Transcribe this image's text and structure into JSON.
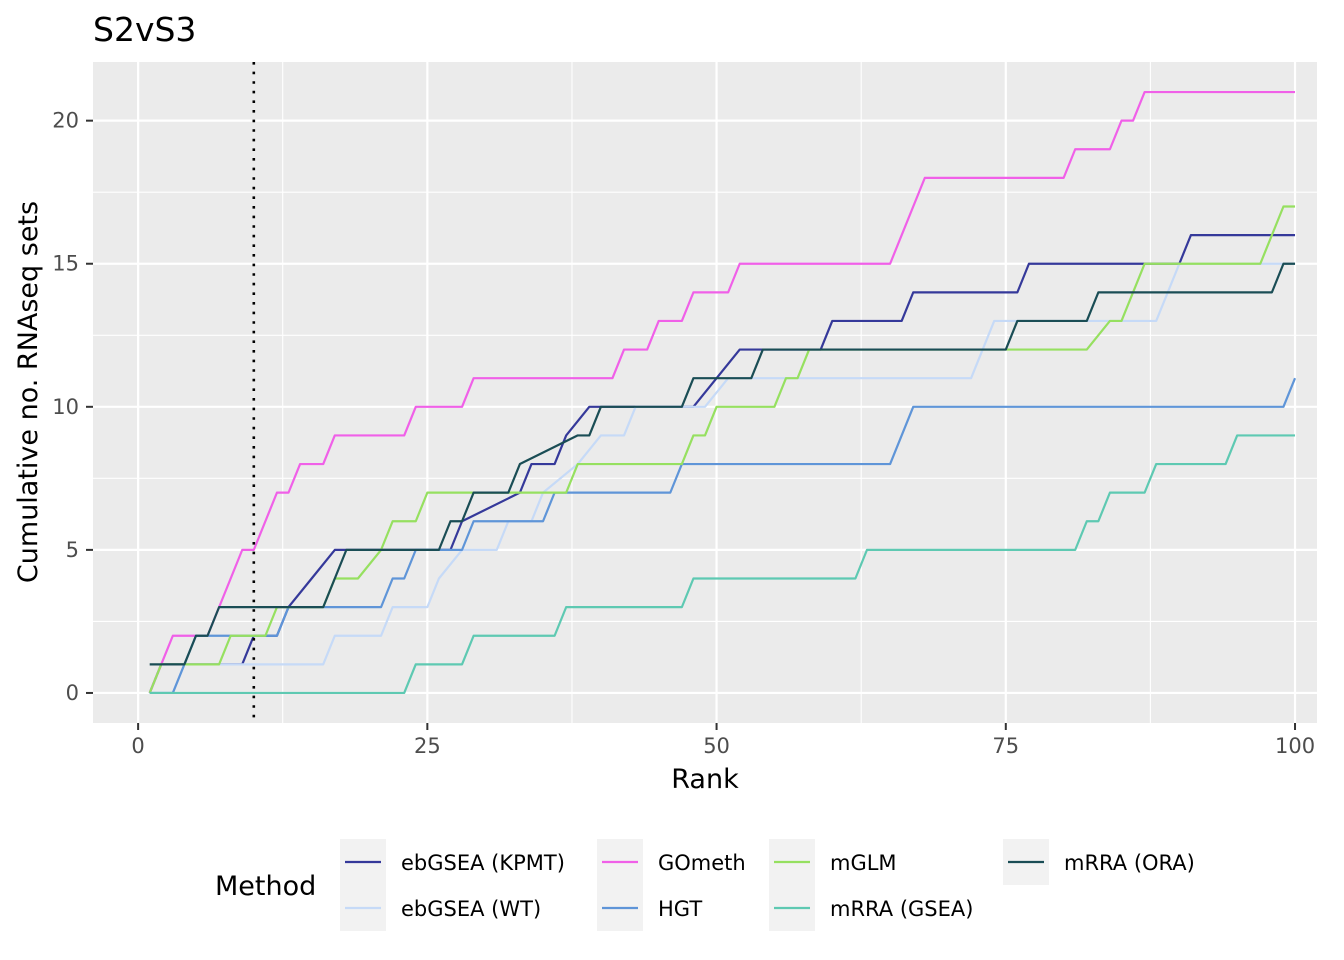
{
  "chart_data": {
    "type": "line",
    "title": "S2vS3",
    "xlabel": "Rank",
    "ylabel": "Cumulative no. RNAseq sets",
    "xlim": [
      -3.9,
      101.9
    ],
    "ylim": [
      -1.05,
      22.05
    ],
    "x_ticks": [
      0,
      25,
      50,
      75,
      100
    ],
    "x_tick_labels": [
      "0",
      "25",
      "50",
      "75",
      "100"
    ],
    "y_ticks": [
      0,
      5,
      10,
      15,
      20
    ],
    "y_tick_labels": [
      "0",
      "5",
      "10",
      "15",
      "20"
    ],
    "reference_line": {
      "x": 10,
      "style": "dotted"
    },
    "grid": true,
    "legend": {
      "title": "Method",
      "position": "bottom"
    },
    "series": [
      {
        "name": "ebGSEA (KPMT)",
        "color": "#35399a",
        "steps": [
          [
            1,
            0
          ],
          [
            2,
            1
          ],
          [
            9,
            1
          ],
          [
            10,
            2
          ],
          [
            12,
            2
          ],
          [
            13,
            3
          ],
          [
            15,
            4
          ],
          [
            17,
            5
          ],
          [
            27,
            5
          ],
          [
            28,
            6
          ],
          [
            33,
            7
          ],
          [
            34,
            8
          ],
          [
            36,
            8
          ],
          [
            37,
            9
          ],
          [
            39,
            10
          ],
          [
            48,
            10
          ],
          [
            50,
            11
          ],
          [
            52,
            12
          ],
          [
            54,
            12
          ],
          [
            56,
            12
          ],
          [
            58,
            12
          ],
          [
            59,
            12
          ],
          [
            60,
            13
          ],
          [
            66,
            13
          ],
          [
            67,
            14
          ],
          [
            76,
            14
          ],
          [
            77,
            15
          ],
          [
            90,
            15
          ],
          [
            91,
            16
          ],
          [
            100,
            16
          ]
        ]
      },
      {
        "name": "ebGSEA (WT)",
        "color": "#c6daf7",
        "steps": [
          [
            1,
            0
          ],
          [
            3,
            0
          ],
          [
            4,
            1
          ],
          [
            16,
            1
          ],
          [
            17,
            2
          ],
          [
            21,
            2
          ],
          [
            22,
            3
          ],
          [
            25,
            3
          ],
          [
            26,
            4
          ],
          [
            28,
            5
          ],
          [
            31,
            5
          ],
          [
            32,
            6
          ],
          [
            34,
            6
          ],
          [
            35,
            7
          ],
          [
            38,
            8
          ],
          [
            40,
            9
          ],
          [
            42,
            9
          ],
          [
            43,
            10
          ],
          [
            48,
            10
          ],
          [
            49,
            10
          ],
          [
            51,
            11
          ],
          [
            72,
            11
          ],
          [
            74,
            13
          ],
          [
            88,
            13
          ],
          [
            90,
            15
          ],
          [
            100,
            15
          ]
        ]
      },
      {
        "name": "GOmeth",
        "color": "#f060e8",
        "steps": [
          [
            1,
            0
          ],
          [
            2,
            1
          ],
          [
            3,
            2
          ],
          [
            5,
            2
          ],
          [
            6,
            2
          ],
          [
            7,
            3
          ],
          [
            9,
            5
          ],
          [
            10,
            5
          ],
          [
            12,
            7
          ],
          [
            13,
            7
          ],
          [
            14,
            8
          ],
          [
            16,
            8
          ],
          [
            17,
            9
          ],
          [
            23,
            9
          ],
          [
            24,
            10
          ],
          [
            27,
            10
          ],
          [
            28,
            10
          ],
          [
            29,
            11
          ],
          [
            41,
            11
          ],
          [
            42,
            12
          ],
          [
            44,
            12
          ],
          [
            45,
            13
          ],
          [
            47,
            13
          ],
          [
            48,
            14
          ],
          [
            51,
            14
          ],
          [
            52,
            15
          ],
          [
            65,
            15
          ],
          [
            68,
            18
          ],
          [
            80,
            18
          ],
          [
            81,
            19
          ],
          [
            84,
            19
          ],
          [
            85,
            20
          ],
          [
            86,
            20
          ],
          [
            87,
            21
          ],
          [
            100,
            21
          ]
        ]
      },
      {
        "name": "HGT",
        "color": "#5f95d8",
        "steps": [
          [
            1,
            0
          ],
          [
            3,
            0
          ],
          [
            5,
            2
          ],
          [
            12,
            2
          ],
          [
            13,
            3
          ],
          [
            21,
            3
          ],
          [
            22,
            4
          ],
          [
            23,
            4
          ],
          [
            24,
            5
          ],
          [
            28,
            5
          ],
          [
            29,
            6
          ],
          [
            35,
            6
          ],
          [
            36,
            7
          ],
          [
            46,
            7
          ],
          [
            47,
            8
          ],
          [
            65,
            8
          ],
          [
            67,
            10
          ],
          [
            99,
            10
          ],
          [
            100,
            11
          ]
        ]
      },
      {
        "name": "mGLM",
        "color": "#96e060",
        "steps": [
          [
            1,
            0
          ],
          [
            2,
            1
          ],
          [
            7,
            1
          ],
          [
            8,
            2
          ],
          [
            11,
            2
          ],
          [
            12,
            3
          ],
          [
            16,
            3
          ],
          [
            17,
            4
          ],
          [
            19,
            4
          ],
          [
            21,
            5
          ],
          [
            22,
            6
          ],
          [
            24,
            6
          ],
          [
            25,
            7
          ],
          [
            34,
            7
          ],
          [
            35,
            7
          ],
          [
            37,
            7
          ],
          [
            38,
            8
          ],
          [
            47,
            8
          ],
          [
            48,
            9
          ],
          [
            49,
            9
          ],
          [
            50,
            10
          ],
          [
            55,
            10
          ],
          [
            56,
            11
          ],
          [
            57,
            11
          ],
          [
            58,
            12
          ],
          [
            82,
            12
          ],
          [
            84,
            13
          ],
          [
            85,
            13
          ],
          [
            87,
            15
          ],
          [
            97,
            15
          ],
          [
            99,
            17
          ],
          [
            100,
            17
          ]
        ]
      },
      {
        "name": "mRRA (GSEA)",
        "color": "#5ec9b2",
        "steps": [
          [
            1,
            0
          ],
          [
            23,
            0
          ],
          [
            24,
            1
          ],
          [
            28,
            1
          ],
          [
            29,
            2
          ],
          [
            36,
            2
          ],
          [
            37,
            3
          ],
          [
            47,
            3
          ],
          [
            48,
            4
          ],
          [
            62,
            4
          ],
          [
            63,
            5
          ],
          [
            81,
            5
          ],
          [
            82,
            6
          ],
          [
            83,
            6
          ],
          [
            84,
            7
          ],
          [
            87,
            7
          ],
          [
            88,
            8
          ],
          [
            94,
            8
          ],
          [
            95,
            9
          ],
          [
            100,
            9
          ]
        ]
      },
      {
        "name": "mRRA (ORA)",
        "color": "#1a4d55",
        "steps": [
          [
            1,
            1
          ],
          [
            4,
            1
          ],
          [
            5,
            2
          ],
          [
            6,
            2
          ],
          [
            7,
            3
          ],
          [
            16,
            3
          ],
          [
            18,
            5
          ],
          [
            26,
            5
          ],
          [
            27,
            6
          ],
          [
            28,
            6
          ],
          [
            29,
            7
          ],
          [
            32,
            7
          ],
          [
            33,
            8
          ],
          [
            38,
            9
          ],
          [
            39,
            9
          ],
          [
            40,
            10
          ],
          [
            47,
            10
          ],
          [
            48,
            11
          ],
          [
            53,
            11
          ],
          [
            54,
            12
          ],
          [
            75,
            12
          ],
          [
            76,
            13
          ],
          [
            82,
            13
          ],
          [
            83,
            14
          ],
          [
            98,
            14
          ],
          [
            99,
            15
          ],
          [
            100,
            15
          ]
        ]
      }
    ]
  }
}
